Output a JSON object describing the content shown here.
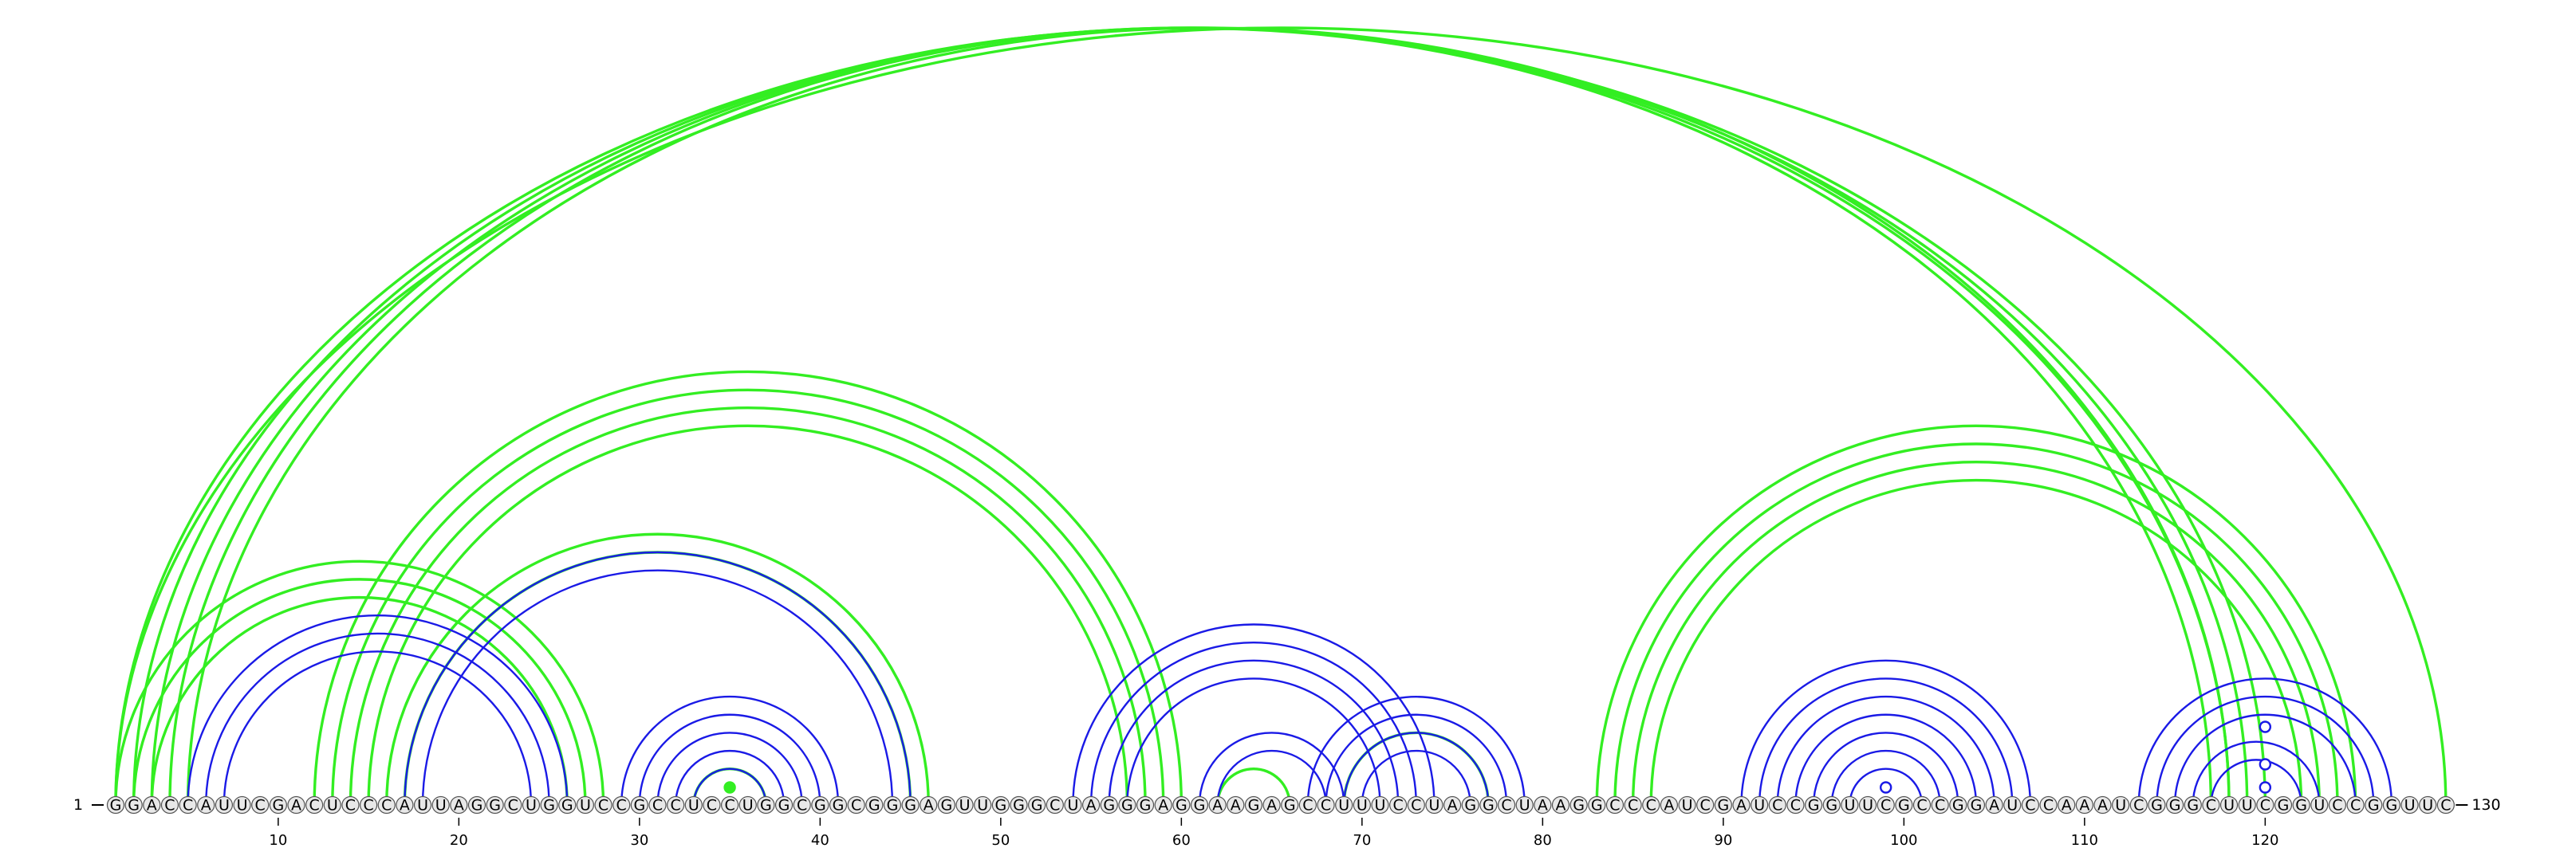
{
  "sequence": "GGACCAUUCGACUCCCAUUAGGCUGGUCCGCCUCCUGGCGGCGGGAGUUGGGCUAGGGAGGAAGAGCCUUUCCUAGGCUAAGGCCCAUCGAUCCGGUUCGCCGGAUCCAAAUCGGGCUUCGGUCCGGUUC",
  "start_label": "1",
  "end_label": "130",
  "ticks": [
    "10",
    "20",
    "30",
    "40",
    "50",
    "60",
    "70",
    "80",
    "90",
    "100",
    "110",
    "120"
  ],
  "colors": {
    "green": "#33ee22",
    "blue": "#1a1ae6"
  },
  "green_helices": [
    {
      "i": 1,
      "j": 120,
      "n": 4
    },
    {
      "i": 5,
      "j": 118,
      "n": 1
    },
    {
      "i": 1,
      "j": 130,
      "n": 1
    },
    {
      "i": 1,
      "j": 28,
      "n": 3
    },
    {
      "i": 12,
      "j": 60,
      "n": 4
    },
    {
      "i": 16,
      "j": 46,
      "n": 2
    },
    {
      "i": 83,
      "j": 125,
      "n": 4
    },
    {
      "i": 33,
      "j": 37,
      "n": 1
    },
    {
      "i": 62,
      "j": 66,
      "n": 1
    },
    {
      "i": 69,
      "j": 77,
      "n": 1
    }
  ],
  "blue_helices": [
    {
      "i": 5,
      "j": 26,
      "n": 3
    },
    {
      "i": 17,
      "j": 45,
      "n": 2
    },
    {
      "i": 29,
      "j": 41,
      "n": 5
    },
    {
      "i": 54,
      "j": 74,
      "n": 4
    },
    {
      "i": 61,
      "j": 69,
      "n": 2
    },
    {
      "i": 67,
      "j": 79,
      "n": 4
    },
    {
      "i": 91,
      "j": 107,
      "n": 7
    },
    {
      "i": 113,
      "j": 127,
      "n": 3
    },
    {
      "i": 116,
      "j": 123,
      "n": 2
    }
  ],
  "markers": [
    {
      "pos": 35,
      "height": 12,
      "color": "green",
      "filled": true
    },
    {
      "pos": 99,
      "height": 12,
      "color": "blue",
      "filled": false
    },
    {
      "pos": 120,
      "height": 12,
      "color": "blue",
      "filled": false
    },
    {
      "pos": 120,
      "height": 41,
      "color": "blue",
      "filled": false
    },
    {
      "pos": 120,
      "height": 88,
      "color": "blue",
      "filled": false
    }
  ]
}
